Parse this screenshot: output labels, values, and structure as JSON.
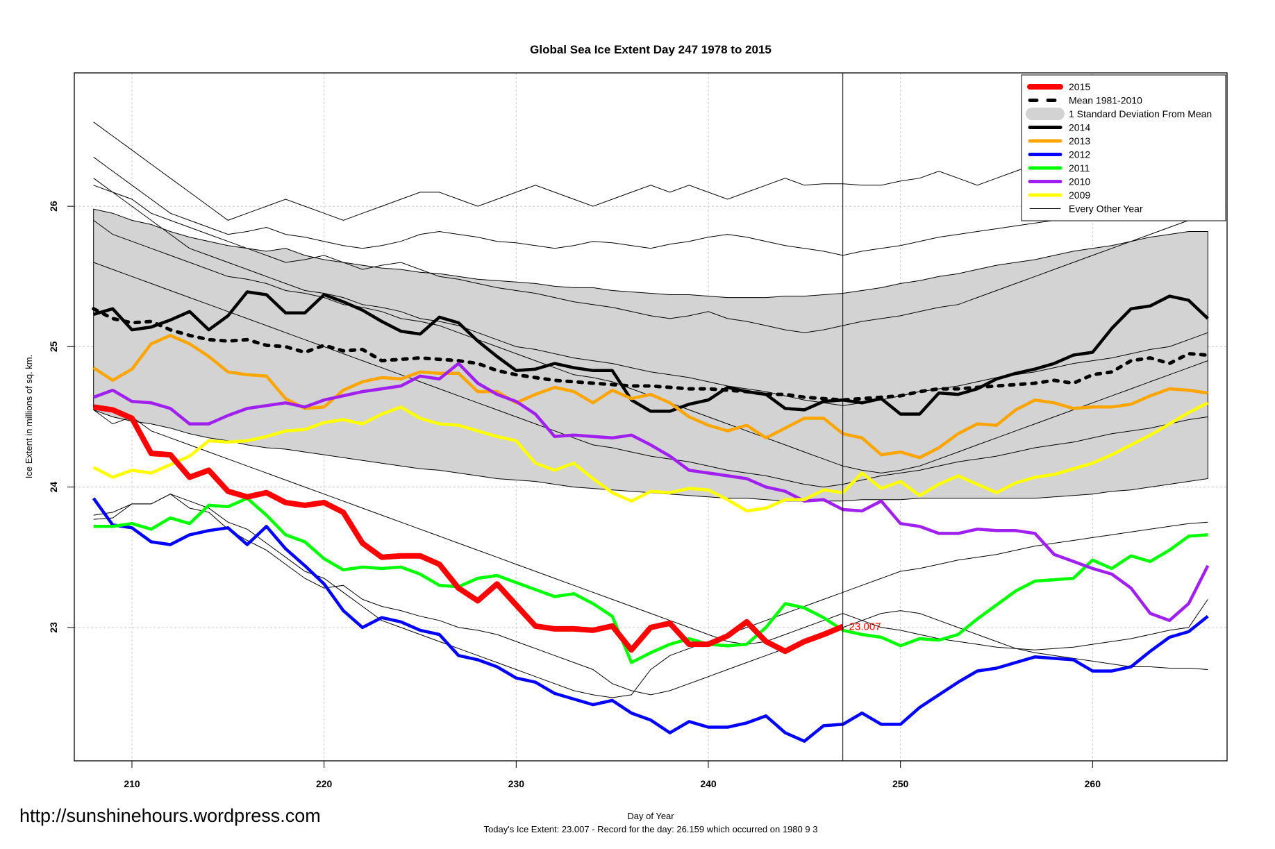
{
  "chart_data": {
    "type": "line",
    "title": "Global Sea Ice Extent Day 247 1978 to 2015",
    "xlabel": "Day of Year",
    "ylabel": "Ice Extent in millions of sq. km.",
    "subtitle": "Today's Ice Extent: 23.007  - Record for the day: 26.159 which occurred on 1980 9 3",
    "xlim": [
      207,
      267
    ],
    "ylim": [
      22.05,
      26.95
    ],
    "x_ticks": [
      210,
      220,
      230,
      240,
      250,
      260
    ],
    "y_ticks": [
      23,
      24,
      25,
      26
    ],
    "grid": true,
    "marker_day": 247,
    "annotation": {
      "x": 247,
      "y": 23.007,
      "text": "23.007",
      "color": "#ff0000"
    },
    "legend_position": "top-right",
    "legend": [
      {
        "label": "2015",
        "color": "#ff0000",
        "style": "thick"
      },
      {
        "label": "Mean 1981-2010",
        "color": "#000000",
        "style": "dashed"
      },
      {
        "label": "1 Standard Deviation From Mean",
        "color": "#d3d3d3",
        "style": "band"
      },
      {
        "label": "2014",
        "color": "#000000",
        "style": "solid"
      },
      {
        "label": "2013",
        "color": "#ffa500",
        "style": "solid"
      },
      {
        "label": "2012",
        "color": "#0000ff",
        "style": "solid"
      },
      {
        "label": "2011",
        "color": "#00ff00",
        "style": "solid"
      },
      {
        "label": "2010",
        "color": "#a020f0",
        "style": "solid"
      },
      {
        "label": "2009",
        "color": "#ffff00",
        "style": "solid"
      },
      {
        "label": "Every Other Year",
        "color": "#000000",
        "style": "thin"
      }
    ],
    "x_start": 208,
    "mean": [
      25.27,
      25.2,
      25.17,
      25.18,
      25.12,
      25.08,
      25.05,
      25.04,
      25.05,
      25.01,
      25.0,
      24.96,
      25.01,
      24.97,
      24.98,
      24.9,
      24.91,
      24.92,
      24.91,
      24.9,
      24.88,
      24.83,
      24.8,
      24.78,
      24.76,
      24.75,
      24.74,
      24.73,
      24.72,
      24.72,
      24.71,
      24.7,
      24.7,
      24.69,
      24.68,
      24.66,
      24.66,
      24.64,
      24.63,
      24.62,
      24.63,
      24.64,
      24.65,
      24.68,
      24.7,
      24.7,
      24.71,
      24.72,
      24.73,
      24.74,
      24.76,
      24.74,
      24.8,
      24.82,
      24.9,
      24.92,
      24.88,
      24.95,
      24.94
    ],
    "sd_upper": [
      25.98,
      25.95,
      25.9,
      25.87,
      25.82,
      25.78,
      25.75,
      25.72,
      25.7,
      25.68,
      25.7,
      25.65,
      25.62,
      25.6,
      25.58,
      25.56,
      25.55,
      25.53,
      25.52,
      25.5,
      25.48,
      25.47,
      25.46,
      25.45,
      25.43,
      25.42,
      25.42,
      25.4,
      25.39,
      25.38,
      25.37,
      25.37,
      25.36,
      25.35,
      25.35,
      25.35,
      25.36,
      25.36,
      25.37,
      25.38,
      25.4,
      25.42,
      25.45,
      25.47,
      25.5,
      25.52,
      25.55,
      25.58,
      25.6,
      25.62,
      25.65,
      25.68,
      25.7,
      25.72,
      25.75,
      25.78,
      25.8,
      25.82,
      25.82
    ],
    "sd_lower": [
      24.55,
      24.5,
      24.47,
      24.45,
      24.42,
      24.38,
      24.35,
      24.33,
      24.3,
      24.28,
      24.27,
      24.25,
      24.23,
      24.21,
      24.19,
      24.17,
      24.15,
      24.13,
      24.12,
      24.1,
      24.08,
      24.06,
      24.05,
      24.04,
      24.02,
      24.0,
      23.99,
      23.98,
      23.97,
      23.96,
      23.95,
      23.94,
      23.93,
      23.92,
      23.92,
      23.91,
      23.9,
      23.9,
      23.9,
      23.9,
      23.91,
      23.91,
      23.91,
      23.92,
      23.92,
      23.92,
      23.92,
      23.92,
      23.92,
      23.92,
      23.93,
      23.94,
      23.95,
      23.97,
      23.98,
      24.0,
      24.02,
      24.04,
      24.06
    ],
    "series": [
      {
        "name": "2015",
        "color": "#ff0000",
        "width": 8,
        "values": [
          24.57,
          24.55,
          24.49,
          24.24,
          24.23,
          24.07,
          24.12,
          23.97,
          23.93,
          23.96,
          23.89,
          23.87,
          23.89,
          23.82,
          23.6,
          23.5,
          23.51,
          23.51,
          23.45,
          23.28,
          23.19,
          23.31,
          23.16,
          23.01,
          22.99,
          22.99,
          22.98,
          23.01,
          22.84,
          23.0,
          23.03,
          22.88,
          22.88,
          22.94,
          23.04,
          22.9,
          22.83,
          22.9,
          22.95,
          23.007
        ]
      },
      {
        "name": "2014",
        "color": "#000000",
        "width": 4.5,
        "values": [
          25.23,
          25.27,
          25.12,
          25.14,
          25.19,
          25.25,
          25.12,
          25.22,
          25.39,
          25.37,
          25.24,
          25.24,
          25.37,
          25.32,
          25.26,
          25.18,
          25.11,
          25.09,
          25.21,
          25.17,
          25.04,
          24.93,
          24.83,
          24.84,
          24.88,
          24.85,
          24.83,
          24.83,
          24.62,
          24.54,
          24.54,
          24.59,
          24.62,
          24.71,
          24.68,
          24.66,
          24.56,
          24.55,
          24.61,
          24.62,
          24.6,
          24.63,
          24.52,
          24.52,
          24.67,
          24.66,
          24.7,
          24.77,
          24.81,
          24.84,
          24.88,
          24.94,
          24.96,
          25.13,
          25.27,
          25.29,
          25.36,
          25.33,
          25.2
        ]
      },
      {
        "name": "2013",
        "color": "#ffa500",
        "width": 4.5,
        "values": [
          24.85,
          24.76,
          24.84,
          25.02,
          25.08,
          25.02,
          24.93,
          24.82,
          24.8,
          24.79,
          24.63,
          24.56,
          24.57,
          24.69,
          24.75,
          24.78,
          24.77,
          24.82,
          24.81,
          24.81,
          24.68,
          24.68,
          24.6,
          24.66,
          24.71,
          24.68,
          24.6,
          24.69,
          24.63,
          24.66,
          24.6,
          24.5,
          24.44,
          24.4,
          24.44,
          24.35,
          24.42,
          24.49,
          24.49,
          24.38,
          24.35,
          24.23,
          24.25,
          24.21,
          24.28,
          24.38,
          24.45,
          24.44,
          24.55,
          24.62,
          24.6,
          24.56,
          24.57,
          24.57,
          24.59,
          24.65,
          24.7,
          24.69,
          24.67
        ]
      },
      {
        "name": "2012",
        "color": "#0000ff",
        "width": 4.5,
        "values": [
          23.92,
          23.73,
          23.71,
          23.61,
          23.59,
          23.66,
          23.69,
          23.71,
          23.59,
          23.72,
          23.56,
          23.44,
          23.31,
          23.12,
          23.0,
          23.07,
          23.04,
          22.98,
          22.95,
          22.8,
          22.77,
          22.72,
          22.64,
          22.61,
          22.53,
          22.49,
          22.45,
          22.48,
          22.39,
          22.34,
          22.25,
          22.33,
          22.29,
          22.29,
          22.32,
          22.37,
          22.25,
          22.19,
          22.3,
          22.31,
          22.39,
          22.31,
          22.31,
          22.43,
          22.52,
          22.61,
          22.69,
          22.71,
          22.75,
          22.79,
          22.78,
          22.77,
          22.69,
          22.69,
          22.72,
          22.83,
          22.93,
          22.97,
          23.08
        ]
      },
      {
        "name": "2011",
        "color": "#00ff00",
        "width": 4.5,
        "values": [
          23.72,
          23.72,
          23.74,
          23.7,
          23.78,
          23.74,
          23.87,
          23.86,
          23.92,
          23.8,
          23.66,
          23.61,
          23.49,
          23.41,
          23.43,
          23.42,
          23.43,
          23.38,
          23.3,
          23.29,
          23.35,
          23.37,
          23.32,
          23.27,
          23.22,
          23.24,
          23.17,
          23.08,
          22.75,
          22.82,
          22.88,
          22.92,
          22.88,
          22.87,
          22.88,
          23.0,
          23.17,
          23.14,
          23.07,
          22.98,
          22.95,
          22.93,
          22.87,
          22.92,
          22.91,
          22.95,
          23.06,
          23.16,
          23.26,
          23.33,
          23.34,
          23.35,
          23.48,
          23.42,
          23.51,
          23.47,
          23.55,
          23.65,
          23.66
        ]
      },
      {
        "name": "2010",
        "color": "#a020f0",
        "width": 4.5,
        "values": [
          24.64,
          24.69,
          24.61,
          24.6,
          24.56,
          24.45,
          24.45,
          24.51,
          24.56,
          24.58,
          24.6,
          24.57,
          24.62,
          24.65,
          24.68,
          24.7,
          24.72,
          24.79,
          24.77,
          24.88,
          24.74,
          24.66,
          24.61,
          24.52,
          24.36,
          24.37,
          24.36,
          24.35,
          24.37,
          24.3,
          24.22,
          24.12,
          24.1,
          24.08,
          24.06,
          24.0,
          23.97,
          23.9,
          23.91,
          23.84,
          23.83,
          23.9,
          23.74,
          23.72,
          23.67,
          23.67,
          23.7,
          23.69,
          23.69,
          23.67,
          23.52,
          23.47,
          23.42,
          23.38,
          23.28,
          23.1,
          23.05,
          23.17,
          23.44
        ]
      },
      {
        "name": "2009",
        "color": "#ffff00",
        "width": 4.5,
        "values": [
          24.14,
          24.07,
          24.12,
          24.1,
          24.16,
          24.22,
          24.33,
          24.32,
          24.33,
          24.36,
          24.4,
          24.41,
          24.46,
          24.48,
          24.45,
          24.52,
          24.57,
          24.49,
          24.45,
          24.44,
          24.4,
          24.36,
          24.33,
          24.17,
          24.12,
          24.17,
          24.06,
          23.96,
          23.9,
          23.97,
          23.96,
          23.99,
          23.98,
          23.91,
          23.83,
          23.85,
          23.91,
          23.91,
          23.98,
          23.96,
          24.1,
          23.99,
          24.04,
          23.94,
          24.02,
          24.08,
          24.02,
          23.96,
          24.03,
          24.07,
          24.09,
          24.13,
          24.17,
          24.23,
          24.3,
          24.37,
          24.45,
          24.53,
          24.6
        ]
      }
    ],
    "other_years_note": "Every Other Year (thin black lines)",
    "other_years": [
      [
        26.6,
        26.5,
        26.4,
        26.3,
        26.2,
        26.1,
        26.0,
        25.9,
        25.95,
        26.0,
        26.05,
        26.0,
        25.95,
        25.9,
        25.95,
        26.0,
        26.05,
        26.1,
        26.1,
        26.05,
        26.0,
        26.05,
        26.1,
        26.15,
        26.1,
        26.05,
        26.0,
        26.05,
        26.1,
        26.15,
        26.1,
        26.15,
        26.1,
        26.05,
        26.1,
        26.15,
        26.2,
        26.15,
        26.16,
        26.16,
        26.15,
        26.15,
        26.18,
        26.2,
        26.25,
        26.2,
        26.15,
        26.2,
        26.25,
        26.3,
        26.35,
        26.4,
        26.45,
        26.5,
        26.55,
        26.6,
        26.65,
        26.7,
        26.72
      ],
      [
        26.35,
        26.25,
        26.15,
        26.05,
        25.95,
        25.9,
        25.85,
        25.8,
        25.82,
        25.85,
        25.8,
        25.78,
        25.75,
        25.72,
        25.7,
        25.72,
        25.75,
        25.8,
        25.82,
        25.8,
        25.78,
        25.75,
        25.74,
        25.72,
        25.7,
        25.72,
        25.75,
        25.74,
        25.72,
        25.7,
        25.73,
        25.75,
        25.78,
        25.8,
        25.78,
        25.75,
        25.72,
        25.7,
        25.68,
        25.65,
        25.68,
        25.7,
        25.72,
        25.75,
        25.78,
        25.8,
        25.82,
        25.84,
        25.86,
        25.88,
        25.9,
        25.95,
        26.0,
        26.05,
        26.1,
        26.2,
        26.3,
        26.25,
        26.15
      ],
      [
        26.2,
        26.1,
        26.05,
        25.95,
        25.9,
        25.85,
        25.8,
        25.75,
        25.7,
        25.65,
        25.6,
        25.62,
        25.65,
        25.6,
        25.55,
        25.58,
        25.6,
        25.55,
        25.5,
        25.48,
        25.45,
        25.42,
        25.4,
        25.38,
        25.35,
        25.32,
        25.3,
        25.28,
        25.25,
        25.22,
        25.2,
        25.22,
        25.25,
        25.2,
        25.18,
        25.15,
        25.12,
        25.1,
        25.12,
        25.15,
        25.18,
        25.2,
        25.22,
        25.25,
        25.28,
        25.3,
        25.35,
        25.4,
        25.45,
        25.5,
        25.55,
        25.6,
        25.65,
        25.7,
        25.75,
        25.8,
        25.85,
        25.9,
        25.95
      ],
      [
        26.15,
        26.1,
        26.0,
        25.9,
        25.8,
        25.7,
        25.65,
        25.6,
        25.55,
        25.5,
        25.45,
        25.4,
        25.38,
        25.35,
        25.3,
        25.28,
        25.25,
        25.2,
        25.18,
        25.15,
        25.1,
        25.05,
        25.0,
        24.98,
        24.95,
        24.92,
        24.9,
        24.88,
        24.85,
        24.82,
        24.8,
        24.78,
        24.75,
        24.72,
        24.7,
        24.68,
        24.65,
        24.62,
        24.6,
        24.58,
        24.6,
        24.62,
        24.65,
        24.68,
        24.7,
        24.72,
        24.75,
        24.78,
        24.8,
        24.82,
        24.85,
        24.88,
        24.9,
        24.92,
        24.95,
        24.98,
        25.0,
        25.05,
        25.1
      ],
      [
        25.9,
        25.8,
        25.75,
        25.7,
        25.65,
        25.6,
        25.55,
        25.5,
        25.48,
        25.45,
        25.4,
        25.38,
        25.35,
        25.3,
        25.28,
        25.25,
        25.2,
        25.18,
        25.15,
        25.1,
        25.05,
        25.0,
        24.95,
        24.9,
        24.85,
        24.8,
        24.78,
        24.75,
        24.7,
        24.65,
        24.6,
        24.55,
        24.5,
        24.45,
        24.4,
        24.35,
        24.3,
        24.25,
        24.2,
        24.15,
        24.12,
        24.1,
        24.12,
        24.15,
        24.2,
        24.25,
        24.3,
        24.35,
        24.4,
        24.45,
        24.5,
        24.55,
        24.6,
        24.65,
        24.7,
        24.75,
        24.8,
        24.85,
        24.9
      ],
      [
        25.6,
        25.55,
        25.5,
        25.45,
        25.4,
        25.35,
        25.3,
        25.25,
        25.2,
        25.15,
        25.1,
        25.05,
        25.0,
        24.95,
        24.9,
        24.85,
        24.8,
        24.75,
        24.7,
        24.65,
        24.6,
        24.55,
        24.5,
        24.45,
        24.4,
        24.35,
        24.3,
        24.28,
        24.25,
        24.22,
        24.2,
        24.18,
        24.15,
        24.12,
        24.1,
        24.08,
        24.05,
        24.02,
        24.0,
        24.02,
        24.05,
        24.08,
        24.1,
        24.12,
        24.15,
        24.18,
        24.2,
        24.22,
        24.25,
        24.28,
        24.3,
        24.32,
        24.35,
        24.38,
        24.4,
        24.42,
        24.45,
        24.48,
        24.5
      ],
      [
        24.55,
        24.45,
        24.5,
        24.4,
        24.35,
        24.3,
        24.25,
        24.2,
        24.15,
        24.1,
        24.05,
        24.0,
        23.95,
        23.9,
        23.85,
        23.8,
        23.75,
        23.7,
        23.65,
        23.6,
        23.55,
        23.5,
        23.45,
        23.4,
        23.35,
        23.3,
        23.25,
        23.2,
        23.15,
        23.1,
        23.05,
        23.0,
        22.95,
        22.9,
        22.88,
        22.9,
        22.95,
        23.0,
        23.05,
        23.1,
        23.05,
        23.0,
        22.98,
        22.95,
        22.92,
        22.9,
        22.88,
        22.86,
        22.85,
        22.84,
        22.85,
        22.86,
        22.88,
        22.9,
        22.92,
        22.95,
        22.98,
        23.0,
        23.2
      ],
      [
        23.8,
        23.82,
        23.88,
        23.88,
        23.95,
        23.85,
        23.82,
        23.7,
        23.62,
        23.55,
        23.45,
        23.35,
        23.28,
        23.3,
        23.2,
        23.15,
        23.12,
        23.08,
        23.05,
        23.0,
        22.98,
        22.95,
        22.9,
        22.85,
        22.8,
        22.75,
        22.7,
        22.6,
        22.55,
        22.52,
        22.55,
        22.6,
        22.65,
        22.7,
        22.75,
        22.8,
        22.85,
        22.9,
        22.95,
        23.0,
        23.05,
        23.1,
        23.12,
        23.1,
        23.05,
        23.0,
        22.95,
        22.9,
        22.85,
        22.82,
        22.8,
        22.78,
        22.76,
        22.74,
        22.72,
        22.72,
        22.71,
        22.71,
        22.7
      ],
      [
        23.77,
        23.78,
        23.88,
        23.88,
        23.95,
        23.9,
        23.85,
        23.75,
        23.7,
        23.6,
        23.5,
        23.4,
        23.35,
        23.25,
        23.15,
        23.05,
        23.0,
        22.95,
        22.9,
        22.85,
        22.8,
        22.75,
        22.7,
        22.65,
        22.6,
        22.55,
        22.52,
        22.5,
        22.52,
        22.7,
        22.8,
        22.85,
        22.9,
        22.95,
        23.0,
        23.05,
        23.1,
        23.15,
        23.2,
        23.25,
        23.3,
        23.35,
        23.4,
        23.42,
        23.45,
        23.48,
        23.5,
        23.52,
        23.55,
        23.58,
        23.6,
        23.62,
        23.64,
        23.66,
        23.68,
        23.7,
        23.72,
        23.74,
        23.75
      ]
    ]
  },
  "footer": {
    "watermark": "http://sunshinehours.wordpress.com"
  }
}
